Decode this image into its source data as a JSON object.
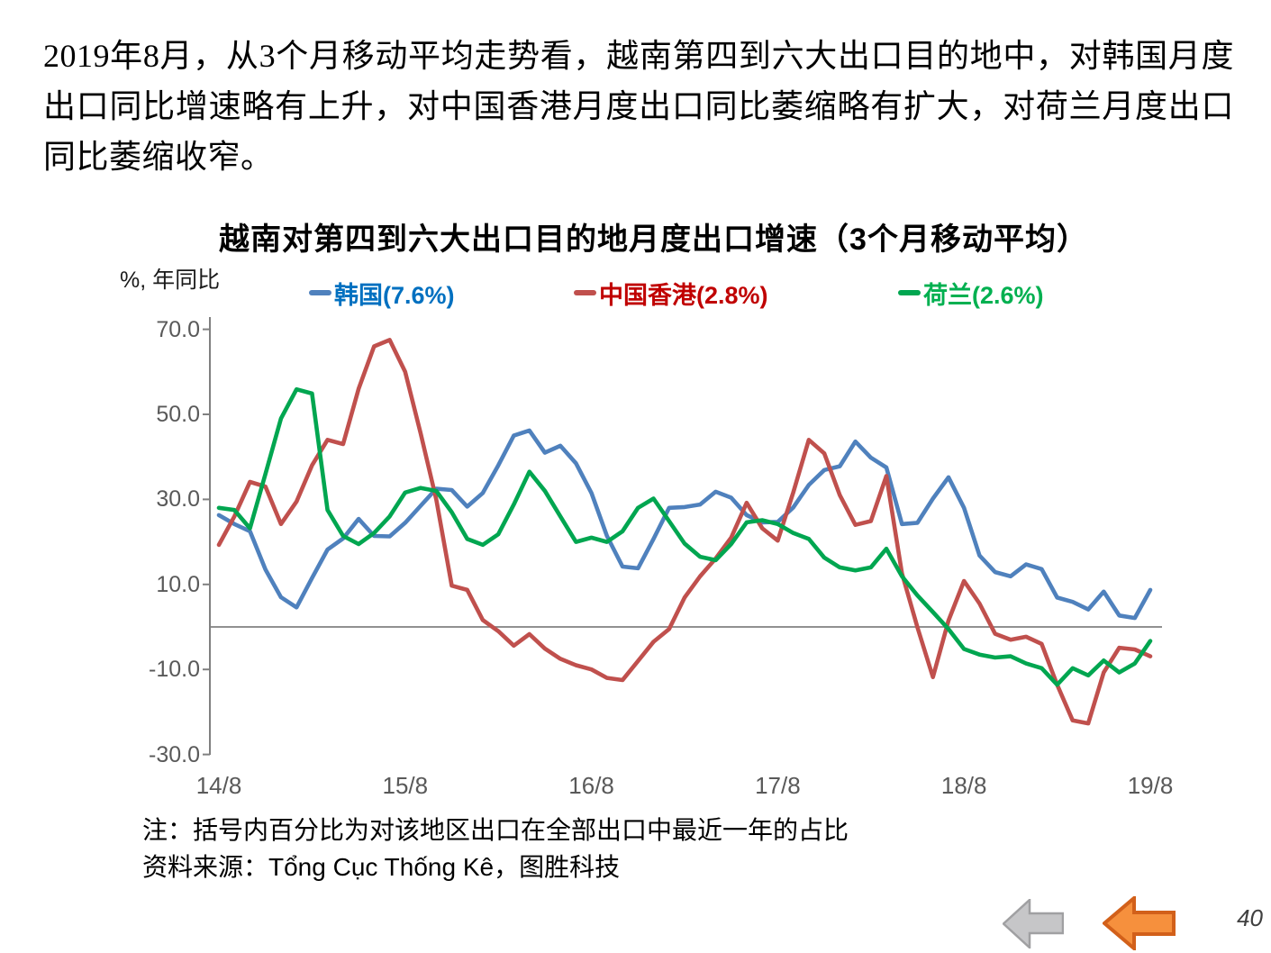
{
  "page": {
    "paragraph": "2019年8月，从3个月移动平均走势看，越南第四到六大出口目的地中，对韩国月度出口同比增速略有上升，对中国香港月度出口同比萎缩略有扩大，对荷兰月度出口同比萎缩收窄。",
    "page_number": "40"
  },
  "chart": {
    "title": "越南对第四到六大出口目的地月度出口增速（3个月移动平均）",
    "y_unit_label": "%, 年同比",
    "legend": [
      {
        "label": "韩国(7.6%)",
        "marker_color": "#4F81BD",
        "text_color": "#0070C0"
      },
      {
        "label": "中国香港(2.8%)",
        "marker_color": "#C0504D",
        "text_color": "#C00000"
      },
      {
        "label": "荷兰(2.6%)",
        "marker_color": "#00A650",
        "text_color": "#00B050"
      }
    ],
    "axis_color": "#808080",
    "tick_label_color": "#595959"
  },
  "chart_data": {
    "type": "line",
    "title": "越南对第四到六大出口目的地月度出口增速（3个月移动平均）",
    "ylabel": "%, 年同比",
    "x_unit": "month (Aug 2014 - Aug 2019, monthly)",
    "x_tick_labels": [
      "14/8",
      "15/8",
      "16/8",
      "17/8",
      "18/8",
      "19/8"
    ],
    "x_ticks_every_n_months": 12,
    "y_tick_labels": [
      "70.0",
      "50.0",
      "30.0",
      "10.0",
      "-10.0",
      "-30.0"
    ],
    "ylim": [
      -30,
      73
    ],
    "grid": false,
    "zero_line": true,
    "legend_position": "top",
    "series": [
      {
        "id": "korea",
        "name": "韩国(7.6%)",
        "color": "#4F81BD",
        "values": [
          26.3,
          24.2,
          22.5,
          13.5,
          7.0,
          4.6,
          11.5,
          18.2,
          20.8,
          25.4,
          21.4,
          21.3,
          24.5,
          28.5,
          32.5,
          32.2,
          28.3,
          31.5,
          38.0,
          45.0,
          46.2,
          41.0,
          42.6,
          38.5,
          31.5,
          21.4,
          14.2,
          13.8,
          20.7,
          28.0,
          28.2,
          28.8,
          31.8,
          30.4,
          26.3,
          24.6,
          24.7,
          28.1,
          33.4,
          36.9,
          37.8,
          43.6,
          39.8,
          37.5,
          24.2,
          24.5,
          30.2,
          35.2,
          28.0,
          16.8,
          12.9,
          11.9,
          14.7,
          13.6,
          6.9,
          5.9,
          4.1,
          8.3,
          2.7,
          2.1,
          8.7
        ]
      },
      {
        "id": "hongkong",
        "name": "中国香港(2.8%)",
        "color": "#C0504D",
        "values": [
          19.3,
          26.0,
          34.1,
          33.0,
          24.2,
          29.5,
          38.0,
          44.0,
          43.0,
          56.0,
          66.0,
          67.5,
          60.0,
          45.5,
          30.0,
          9.7,
          8.7,
          1.6,
          -1.0,
          -4.4,
          -1.7,
          -5.1,
          -7.5,
          -9.0,
          -10.0,
          -12.0,
          -12.5,
          -8.0,
          -3.5,
          -0.5,
          6.9,
          11.9,
          16.1,
          21.0,
          29.2,
          23.2,
          20.3,
          31.6,
          44.0,
          40.8,
          31.0,
          24.0,
          24.9,
          35.5,
          12.6,
          -0.1,
          -11.8,
          1.5,
          10.8,
          5.5,
          -1.6,
          -3.0,
          -2.3,
          -4.0,
          -13.6,
          -22.0,
          -22.7,
          -10.7,
          -4.9,
          -5.3,
          -6.9
        ]
      },
      {
        "id": "netherlands",
        "name": "荷兰(2.6%)",
        "color": "#00A650",
        "values": [
          28.0,
          27.5,
          23.2,
          36.0,
          49.0,
          55.9,
          54.9,
          27.5,
          21.4,
          19.5,
          22.1,
          26.0,
          31.6,
          32.7,
          32.0,
          27.0,
          20.7,
          19.3,
          21.8,
          28.8,
          36.5,
          32.0,
          26.0,
          20.0,
          21.0,
          20.0,
          22.5,
          28.0,
          30.2,
          24.9,
          19.6,
          16.5,
          15.7,
          19.5,
          24.6,
          25.1,
          24.2,
          22.1,
          20.7,
          16.3,
          14.0,
          13.3,
          14.0,
          18.4,
          11.9,
          7.4,
          3.5,
          -0.5,
          -5.2,
          -6.5,
          -7.2,
          -6.9,
          -8.6,
          -9.7,
          -13.6,
          -9.7,
          -11.4,
          -7.9,
          -10.7,
          -8.6,
          -3.3
        ]
      }
    ]
  },
  "footnotes": {
    "note": "注：括号内百分比为对该地区出口在全部出口中最近一年的占比",
    "source": "资料来源：Tổng Cục Thống Kê，图胜科技"
  },
  "nav": {
    "gray_arrow": {
      "fill": "#C6C6C8",
      "stroke": "#A0A0A2"
    },
    "orange_arrow": {
      "fill": "#F6903D",
      "stroke": "#D2601A"
    }
  }
}
